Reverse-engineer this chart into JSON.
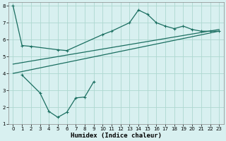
{
  "bg_color": "#d8f0f0",
  "grid_color": "#aed8d0",
  "line_color": "#1a6e60",
  "xlabel": "Humidex (Indice chaleur)",
  "xlim": [
    -0.5,
    23.5
  ],
  "ylim": [
    1,
    8.2
  ],
  "yticks": [
    1,
    2,
    3,
    4,
    5,
    6,
    7,
    8
  ],
  "xticks": [
    0,
    1,
    2,
    3,
    4,
    5,
    6,
    7,
    8,
    9,
    10,
    11,
    12,
    13,
    14,
    15,
    16,
    17,
    18,
    19,
    20,
    21,
    22,
    23
  ],
  "series1_x": [
    0,
    1,
    2,
    5,
    6,
    10,
    11,
    13,
    14,
    15,
    16,
    17,
    18,
    19,
    20,
    21,
    22,
    23
  ],
  "series1_y": [
    8.0,
    5.65,
    5.6,
    5.4,
    5.35,
    6.3,
    6.5,
    7.0,
    7.75,
    7.5,
    7.0,
    6.8,
    6.65,
    6.8,
    6.6,
    6.5,
    6.5,
    6.5
  ],
  "series2_x": [
    1,
    3,
    4,
    5,
    6,
    7,
    8,
    9
  ],
  "series2_y": [
    3.9,
    2.85,
    1.75,
    1.4,
    1.7,
    2.55,
    2.6,
    3.5
  ],
  "regline1_x": [
    0,
    23
  ],
  "regline1_y": [
    4.0,
    6.5
  ],
  "regline2_x": [
    0,
    23
  ],
  "regline2_y": [
    4.55,
    6.6
  ]
}
